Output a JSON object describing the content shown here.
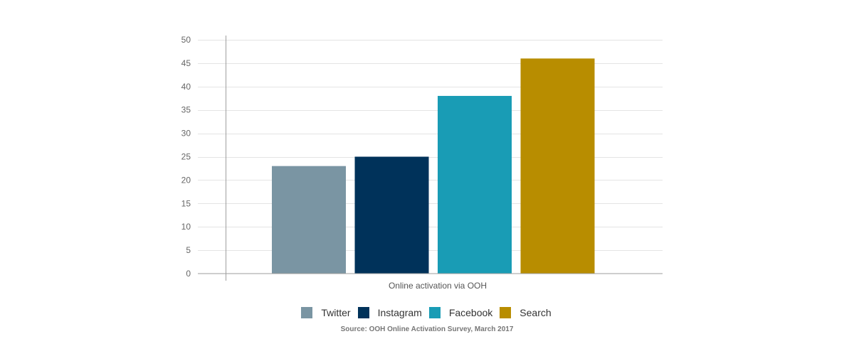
{
  "chart_data": {
    "type": "bar",
    "categories": [
      "Online activation via OOH"
    ],
    "series": [
      {
        "name": "Twitter",
        "values": [
          23
        ],
        "color": "#7A95A3"
      },
      {
        "name": "Instagram",
        "values": [
          25
        ],
        "color": "#00325A"
      },
      {
        "name": "Facebook",
        "values": [
          38
        ],
        "color": "#199CB5"
      },
      {
        "name": "Search",
        "values": [
          46
        ],
        "color": "#B88D00"
      }
    ],
    "ylim": [
      0,
      50
    ],
    "yticks": [
      0,
      5,
      10,
      15,
      20,
      25,
      30,
      35,
      40,
      45,
      50
    ],
    "grid": true,
    "legend": "bottom",
    "source": "Source: OOH Online Activation Survey, March 2017"
  }
}
